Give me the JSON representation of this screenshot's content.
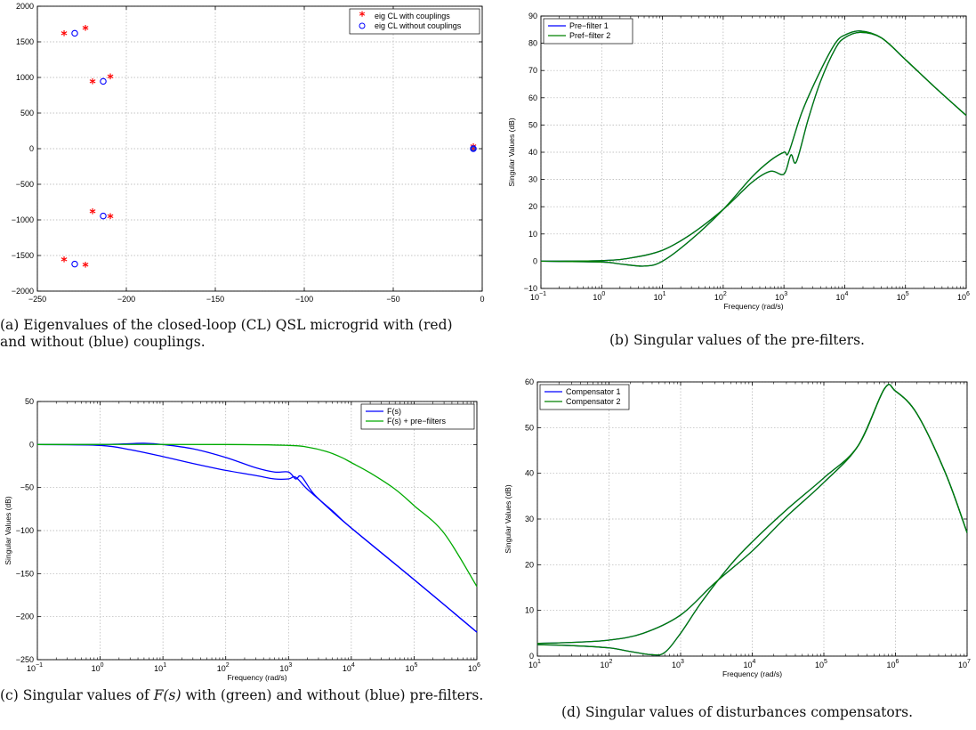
{
  "chart_data": [
    {
      "id": "a",
      "type": "scatter",
      "caption": "(a) Eigenvalues of the closed-loop (CL) QSL microgrid with (red) and without (blue) couplings.",
      "xlabel": "",
      "ylabel": "",
      "xlim": [
        -250,
        0
      ],
      "ylim": [
        -2000,
        2000
      ],
      "xticks": [
        -250,
        -200,
        -150,
        -100,
        -50,
        0
      ],
      "yticks": [
        -2000,
        -1500,
        -1000,
        -500,
        0,
        500,
        1000,
        1500,
        2000
      ],
      "grid": true,
      "legend_position": "top-right",
      "series": [
        {
          "name": "eig CL with couplings",
          "marker": "star",
          "color": "#ff0000",
          "x": [
            -235,
            -223,
            -219,
            -209,
            -219,
            -209,
            -235,
            -223,
            -5
          ],
          "y": [
            1590,
            1660,
            910,
            980,
            -910,
            -980,
            -1590,
            -1660,
            0
          ]
        },
        {
          "name": "eig CL without couplings",
          "marker": "circle",
          "color": "#0000ff",
          "x": [
            -229,
            -229,
            -213,
            -213,
            -5
          ],
          "y": [
            1620,
            -1620,
            945,
            -945,
            0
          ]
        }
      ]
    },
    {
      "id": "b",
      "type": "line",
      "caption": "(b) Singular values of the pre-filters.",
      "xlabel": "Frequency (rad/s)",
      "ylabel": "Singular Values (dB)",
      "xscale": "log",
      "xlim": [
        0.1,
        1000000
      ],
      "ylim": [
        -10,
        90
      ],
      "xtick_exponents": [
        -1,
        0,
        1,
        2,
        3,
        4,
        5,
        6
      ],
      "yticks": [
        -10,
        0,
        10,
        20,
        30,
        40,
        50,
        60,
        70,
        80,
        90
      ],
      "grid": true,
      "legend_position": "top-left",
      "series": [
        {
          "name": "Pre−filter 1",
          "color": "#0000ff",
          "x": [
            0.1,
            1,
            3,
            10,
            30,
            100,
            300,
            600,
            1000,
            1300,
            1600,
            2500,
            4000,
            7000,
            10000,
            18000,
            40000,
            100000,
            300000,
            1000000
          ],
          "y": [
            0,
            0.2,
            1.2,
            4,
            10,
            19,
            29,
            33,
            32,
            39,
            36.5,
            52,
            66,
            78,
            82,
            84,
            82,
            74,
            64,
            53.5
          ]
        },
        {
          "name": "Pre−filter 1",
          "color": "#0000ff",
          "x": [
            0.1,
            1,
            2,
            5,
            10,
            30,
            100,
            300,
            600,
            1000,
            1200,
            2000,
            4000,
            7000,
            10000,
            18000,
            40000,
            100000,
            300000,
            1000000
          ],
          "y": [
            0,
            -0.3,
            -1,
            -1.8,
            0,
            8,
            19,
            31,
            37,
            40,
            40,
            55,
            70,
            80,
            83,
            84.5,
            82,
            74,
            64,
            53.5
          ]
        },
        {
          "name": "Pref−filter 2",
          "color": "#008000",
          "x": [
            0.1,
            1,
            3,
            10,
            30,
            100,
            300,
            600,
            1000,
            1300,
            1600,
            2500,
            4000,
            7000,
            10000,
            18000,
            40000,
            100000,
            300000,
            1000000
          ],
          "y": [
            0,
            0.2,
            1.2,
            4,
            10,
            19,
            29,
            33,
            32,
            39,
            36.5,
            52,
            66,
            78,
            82,
            84,
            82,
            74,
            64,
            53.5
          ]
        },
        {
          "name": "Pref−filter 2",
          "color": "#008000",
          "x": [
            0.1,
            1,
            2,
            5,
            10,
            30,
            100,
            300,
            600,
            1000,
            1200,
            2000,
            4000,
            7000,
            10000,
            18000,
            40000,
            100000,
            300000,
            1000000
          ],
          "y": [
            0,
            -0.3,
            -1,
            -1.8,
            0,
            8,
            19,
            31,
            37,
            40,
            40,
            55,
            70,
            80,
            83,
            84.5,
            82,
            74,
            64,
            53.5
          ]
        }
      ]
    },
    {
      "id": "c",
      "type": "line",
      "caption_pre": "(c) Singular values of",
      "caption_math": "F(s)",
      "caption_post": "with (green) and without (blue) pre-filters.",
      "xlabel": "Frequency (rad/s)",
      "ylabel": "Singular Values (dB)",
      "xscale": "log",
      "xlim": [
        0.1,
        1000000
      ],
      "ylim": [
        -250,
        50
      ],
      "xtick_exponents": [
        -1,
        0,
        1,
        2,
        3,
        4,
        5,
        6
      ],
      "yticks": [
        -250,
        -200,
        -150,
        -100,
        -50,
        0,
        50
      ],
      "grid": true,
      "legend_position": "top-right",
      "series": [
        {
          "name": "F(s)",
          "color": "#0000ff",
          "x": [
            0.1,
            1,
            3,
            5,
            10,
            30,
            100,
            300,
            600,
            1000,
            1300,
            1600,
            2500,
            5000,
            10000,
            100000,
            1000000
          ],
          "y": [
            0,
            0,
            1,
            1.5,
            0,
            -5,
            -15,
            -27,
            -32,
            -32,
            -40,
            -37,
            -57,
            -78,
            -97,
            -157,
            -218
          ]
        },
        {
          "name": "F(s)",
          "color": "#0000ff",
          "x": [
            0.1,
            1,
            3,
            10,
            30,
            100,
            300,
            600,
            1000,
            1300,
            2000,
            5000,
            10000,
            100000,
            1000000
          ],
          "y": [
            0,
            -1,
            -6,
            -14,
            -22,
            -30,
            -36,
            -40,
            -40,
            -38,
            -52,
            -77,
            -97,
            -157,
            -218
          ]
        },
        {
          "name": "F(s) + pre−filters",
          "color": "#00aa00",
          "x": [
            0.1,
            100,
            1000,
            2000,
            4000,
            7000,
            10000,
            20000,
            50000,
            100000,
            300000,
            1000000
          ],
          "y": [
            0,
            0,
            -1,
            -3,
            -8,
            -15,
            -21,
            -33,
            -52,
            -71,
            -103,
            -165
          ]
        }
      ]
    },
    {
      "id": "d",
      "type": "line",
      "caption": "(d) Singular values of disturbances compensators.",
      "xlabel": "Frequency (rad/s)",
      "ylabel": "Singular Values (dB)",
      "xscale": "log",
      "xlim": [
        10,
        10000000
      ],
      "ylim": [
        0,
        60
      ],
      "xtick_exponents": [
        1,
        2,
        3,
        4,
        5,
        6,
        7
      ],
      "yticks": [
        0,
        10,
        20,
        30,
        40,
        50,
        60
      ],
      "grid": true,
      "legend_position": "top-left",
      "series": [
        {
          "name": "Compensator 1",
          "color": "#0000ff",
          "x": [
            10,
            30,
            100,
            300,
            1000,
            3000,
            10000,
            30000,
            100000,
            300000,
            700000,
            1000000,
            2000000,
            5000000,
            10000000
          ],
          "y": [
            2.8,
            3,
            3.5,
            5,
            9,
            16,
            23,
            30.5,
            38,
            46,
            58.5,
            58,
            53,
            40,
            27
          ]
        },
        {
          "name": "Compensator 1",
          "color": "#0000ff",
          "x": [
            10,
            30,
            100,
            200,
            400,
            600,
            1000,
            2000,
            5000,
            10000,
            30000,
            100000,
            300000,
            700000,
            1000000,
            2000000,
            5000000,
            10000000
          ],
          "y": [
            2.5,
            2.3,
            1.8,
            1,
            0.3,
            0.8,
            5,
            12,
            20,
            25,
            32,
            39,
            46,
            58.5,
            58,
            53,
            40,
            27
          ]
        },
        {
          "name": "Compensator 2",
          "color": "#008000",
          "x": [
            10,
            30,
            100,
            300,
            1000,
            3000,
            10000,
            30000,
            100000,
            300000,
            700000,
            1000000,
            2000000,
            5000000,
            10000000
          ],
          "y": [
            2.8,
            3,
            3.5,
            5,
            9,
            16,
            23,
            30.5,
            38,
            46,
            58.5,
            58,
            53,
            40,
            27
          ]
        },
        {
          "name": "Compensator 2",
          "color": "#008000",
          "x": [
            10,
            30,
            100,
            200,
            400,
            600,
            1000,
            2000,
            5000,
            10000,
            30000,
            100000,
            300000,
            700000,
            1000000,
            2000000,
            5000000,
            10000000
          ],
          "y": [
            2.5,
            2.3,
            1.8,
            1,
            0.3,
            0.8,
            5,
            12,
            20,
            25,
            32,
            39,
            46,
            58.5,
            58,
            53,
            40,
            27
          ]
        }
      ]
    }
  ]
}
